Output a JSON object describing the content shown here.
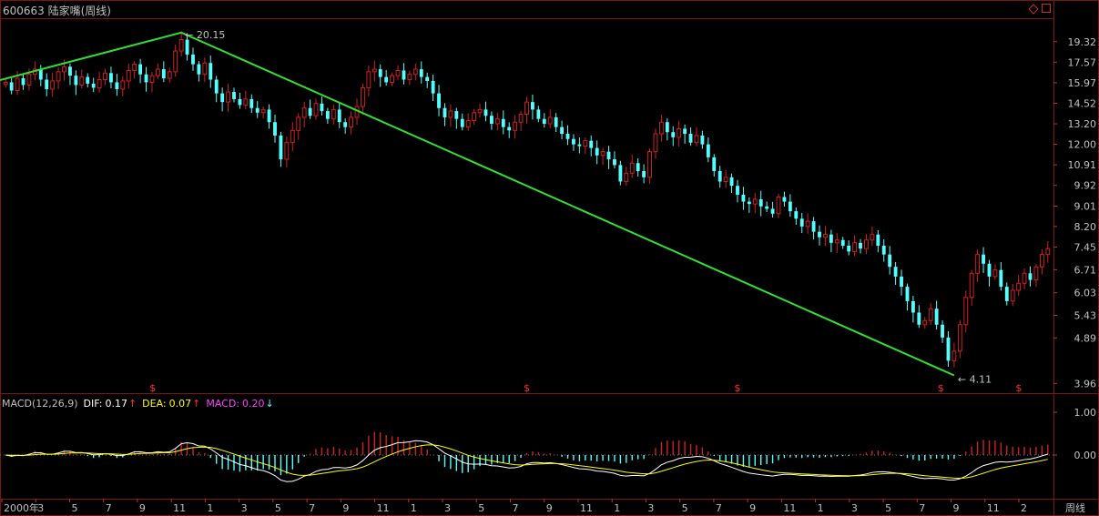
{
  "header": {
    "title": "600663 陆家嘴(周线)"
  },
  "macd_legend": {
    "name": "MACD(12,26,9)",
    "dif_label": "DIF:",
    "dif_value": "0.17",
    "dif_arrow": "↑",
    "dea_label": "DEA:",
    "dea_value": "0.07",
    "dea_arrow": "↑",
    "macd_label": "MACD:",
    "macd_value": "0.20",
    "macd_arrow": "↓"
  },
  "bottom_label": "周线",
  "colors": {
    "background": "#000000",
    "up": "#d02020",
    "down": "#54ffff",
    "trendline": "#30e030",
    "dif": "#ffffff",
    "dea": "#ffff00",
    "macd_text": "#ff40ff",
    "grid": "#7a1515",
    "axis_text": "#c0c0c0"
  },
  "chart_data": [
    {
      "type": "candlestick",
      "title": "600663 陆家嘴(周线)",
      "y_scale": "log",
      "y_ticks": [
        19.32,
        17.57,
        15.97,
        14.52,
        13.2,
        12.0,
        10.91,
        9.92,
        9.01,
        8.2,
        7.45,
        6.71,
        6.03,
        5.43,
        4.89,
        3.96
      ],
      "x_ticks": [
        "2000年",
        "3",
        "5",
        "7",
        "9",
        "11",
        "1",
        "3",
        "5",
        "7",
        "9",
        "11",
        "1",
        "3",
        "5",
        "7",
        "9",
        "11",
        "1",
        "3",
        "5",
        "7",
        "9",
        "11",
        "1",
        "3",
        "5",
        "7",
        "9",
        "11",
        "2"
      ],
      "annotations": [
        {
          "text": "20.15",
          "type": "high"
        },
        {
          "text": "4.11",
          "type": "low"
        }
      ],
      "markers": [
        "$",
        "$",
        "$",
        "$",
        "$"
      ],
      "trendlines": 2,
      "closes": [
        16.0,
        15.4,
        16.3,
        15.8,
        16.6,
        17.0,
        16.2,
        15.5,
        16.1,
        16.8,
        17.2,
        16.5,
        15.8,
        16.4,
        15.9,
        15.6,
        16.2,
        16.7,
        16.0,
        15.5,
        16.1,
        16.9,
        17.4,
        16.6,
        16.0,
        16.5,
        17.0,
        16.3,
        16.8,
        18.5,
        19.5,
        18.2,
        17.4,
        16.6,
        17.5,
        16.2,
        15.2,
        14.6,
        15.3,
        14.8,
        14.4,
        14.8,
        14.2,
        13.9,
        14.1,
        13.3,
        12.5,
        11.2,
        12.1,
        12.8,
        13.6,
        14.2,
        13.7,
        14.5,
        14.0,
        13.5,
        14.1,
        13.3,
        13.0,
        13.6,
        14.3,
        15.6,
        16.8,
        17.0,
        16.4,
        16.0,
        16.5,
        16.9,
        16.2,
        16.6,
        17.0,
        16.4,
        16.1,
        15.2,
        14.2,
        13.6,
        14.0,
        13.5,
        13.0,
        13.4,
        13.9,
        14.1,
        13.7,
        13.2,
        13.5,
        13.0,
        12.8,
        13.3,
        13.8,
        14.6,
        14.1,
        13.5,
        13.2,
        13.6,
        13.0,
        12.6,
        12.3,
        12.0,
        11.9,
        12.2,
        11.8,
        11.4,
        11.6,
        11.2,
        10.9,
        10.1,
        10.5,
        11.0,
        10.6,
        10.3,
        11.6,
        12.6,
        13.3,
        12.7,
        12.4,
        12.9,
        12.6,
        12.1,
        12.5,
        12.0,
        11.3,
        10.6,
        10.1,
        10.3,
        9.9,
        9.5,
        9.2,
        9.1,
        9.3,
        9.0,
        8.9,
        8.7,
        9.4,
        9.2,
        8.8,
        8.5,
        8.2,
        8.4,
        8.0,
        7.8,
        7.9,
        7.6,
        7.7,
        7.5,
        7.3,
        7.6,
        7.4,
        7.7,
        7.9,
        7.5,
        7.2,
        6.8,
        6.5,
        6.2,
        5.8,
        5.5,
        5.2,
        5.3,
        5.6,
        5.2,
        4.9,
        4.4,
        4.6,
        5.2,
        5.9,
        6.6,
        7.2,
        6.9,
        6.5,
        6.7,
        6.2,
        5.8,
        6.1,
        6.3,
        6.6,
        6.4,
        6.8,
        7.2,
        7.4
      ]
    },
    {
      "type": "macd",
      "title": "MACD(12,26,9)",
      "y_ticks": [
        1.0,
        0.0
      ],
      "series": [
        {
          "name": "DIF",
          "last": 0.17
        },
        {
          "name": "DEA",
          "last": 0.07
        },
        {
          "name": "MACD",
          "last": 0.2
        }
      ]
    }
  ]
}
